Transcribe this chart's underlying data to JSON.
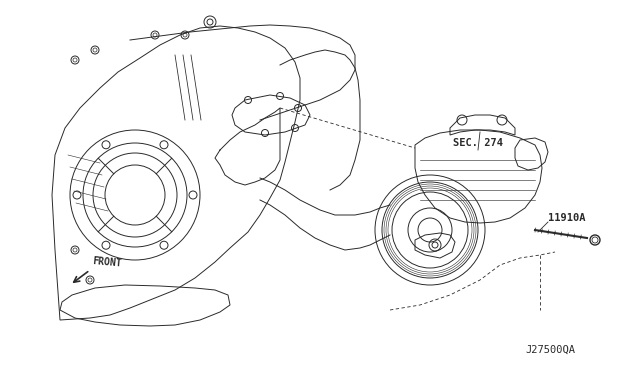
{
  "background_color": "#ffffff",
  "line_color": "#2a2a2a",
  "label_sec274": "SEC. 274",
  "label_11910a": "11910A",
  "label_front": "FRONT",
  "label_diagram_id": "J27500QA",
  "fig_width": 6.4,
  "fig_height": 3.72,
  "dpi": 100
}
